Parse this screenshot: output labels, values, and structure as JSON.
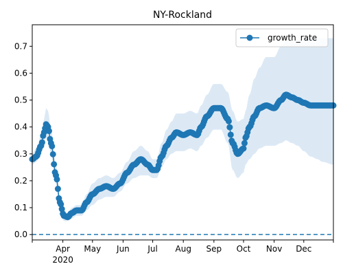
{
  "chart_data": {
    "type": "line",
    "title": "NY-Rockland",
    "xlabel": "",
    "ylabel": "",
    "x_ticks": [
      {
        "date": "2020-03-01",
        "label": ""
      },
      {
        "date": "2020-04-01",
        "label": "Apr"
      },
      {
        "date": "2020-05-01",
        "label": "May"
      },
      {
        "date": "2020-06-01",
        "label": "Jun"
      },
      {
        "date": "2020-07-01",
        "label": "Jul"
      },
      {
        "date": "2020-08-01",
        "label": "Aug"
      },
      {
        "date": "2020-09-01",
        "label": "Sep"
      },
      {
        "date": "2020-10-01",
        "label": "Oct"
      },
      {
        "date": "2020-11-01",
        "label": "Nov"
      },
      {
        "date": "2020-12-01",
        "label": "Dec"
      },
      {
        "date": "2021-01-01",
        "label": ""
      }
    ],
    "year_label": "2020",
    "xlim": [
      "2020-03-01",
      "2020-12-31"
    ],
    "ylim": [
      -0.02,
      0.78
    ],
    "y_ticks": [
      0.0,
      0.1,
      0.2,
      0.3,
      0.4,
      0.5,
      0.6,
      0.7
    ],
    "y_tick_labels": [
      "0.0",
      "0.1",
      "0.2",
      "0.3",
      "0.4",
      "0.5",
      "0.6",
      "0.7"
    ],
    "reference_line": {
      "y": 0.0,
      "style": "dashed"
    },
    "legend": {
      "placement": "top-right",
      "entries": [
        "growth_rate"
      ]
    },
    "colors": {
      "series": "#1f77b4",
      "band": "#dce9f5"
    },
    "series": [
      {
        "name": "growth_rate",
        "x": [
          "2020-03-01",
          "2020-03-05",
          "2020-03-10",
          "2020-03-13",
          "2020-03-15",
          "2020-03-17",
          "2020-03-20",
          "2020-03-25",
          "2020-03-29",
          "2020-04-02",
          "2020-04-06",
          "2020-04-10",
          "2020-04-15",
          "2020-04-20",
          "2020-04-25",
          "2020-05-01",
          "2020-05-08",
          "2020-05-15",
          "2020-05-22",
          "2020-05-29",
          "2020-06-05",
          "2020-06-12",
          "2020-06-19",
          "2020-06-26",
          "2020-07-01",
          "2020-07-05",
          "2020-07-10",
          "2020-07-15",
          "2020-07-20",
          "2020-07-25",
          "2020-08-01",
          "2020-08-08",
          "2020-08-15",
          "2020-08-19",
          "2020-08-25",
          "2020-09-01",
          "2020-09-08",
          "2020-09-15",
          "2020-09-20",
          "2020-09-25",
          "2020-10-01",
          "2020-10-03",
          "2020-10-07",
          "2020-10-12",
          "2020-10-17",
          "2020-10-24",
          "2020-11-01",
          "2020-11-08",
          "2020-11-13",
          "2020-11-19",
          "2020-11-25",
          "2020-12-01",
          "2020-12-08",
          "2020-12-15",
          "2020-12-20",
          "2020-12-31"
        ],
        "values": [
          0.28,
          0.29,
          0.33,
          0.38,
          0.41,
          0.4,
          0.34,
          0.22,
          0.12,
          0.07,
          0.065,
          0.08,
          0.09,
          0.09,
          0.12,
          0.15,
          0.17,
          0.18,
          0.17,
          0.19,
          0.23,
          0.26,
          0.28,
          0.26,
          0.24,
          0.24,
          0.29,
          0.33,
          0.36,
          0.38,
          0.37,
          0.38,
          0.37,
          0.4,
          0.44,
          0.47,
          0.47,
          0.43,
          0.34,
          0.3,
          0.32,
          0.36,
          0.4,
          0.44,
          0.47,
          0.48,
          0.47,
          0.5,
          0.52,
          0.51,
          0.5,
          0.49,
          0.48,
          0.48,
          0.48,
          0.48
        ],
        "lower": [
          0.26,
          0.27,
          0.3,
          0.34,
          0.36,
          0.35,
          0.3,
          0.19,
          0.1,
          0.05,
          0.05,
          0.06,
          0.07,
          0.07,
          0.09,
          0.11,
          0.13,
          0.14,
          0.14,
          0.16,
          0.19,
          0.21,
          0.22,
          0.22,
          0.21,
          0.21,
          0.25,
          0.28,
          0.3,
          0.31,
          0.31,
          0.32,
          0.31,
          0.33,
          0.36,
          0.39,
          0.39,
          0.34,
          0.24,
          0.21,
          0.23,
          0.26,
          0.28,
          0.3,
          0.32,
          0.33,
          0.33,
          0.34,
          0.35,
          0.34,
          0.33,
          0.31,
          0.29,
          0.28,
          0.27,
          0.26
        ],
        "upper": [
          0.3,
          0.32,
          0.37,
          0.43,
          0.47,
          0.46,
          0.39,
          0.26,
          0.14,
          0.09,
          0.08,
          0.1,
          0.11,
          0.11,
          0.15,
          0.19,
          0.21,
          0.22,
          0.21,
          0.23,
          0.27,
          0.31,
          0.33,
          0.31,
          0.28,
          0.28,
          0.34,
          0.39,
          0.42,
          0.45,
          0.45,
          0.46,
          0.45,
          0.48,
          0.52,
          0.56,
          0.56,
          0.53,
          0.46,
          0.42,
          0.43,
          0.46,
          0.52,
          0.58,
          0.62,
          0.66,
          0.66,
          0.7,
          0.72,
          0.72,
          0.72,
          0.73,
          0.73,
          0.73,
          0.73,
          0.73
        ]
      }
    ]
  }
}
